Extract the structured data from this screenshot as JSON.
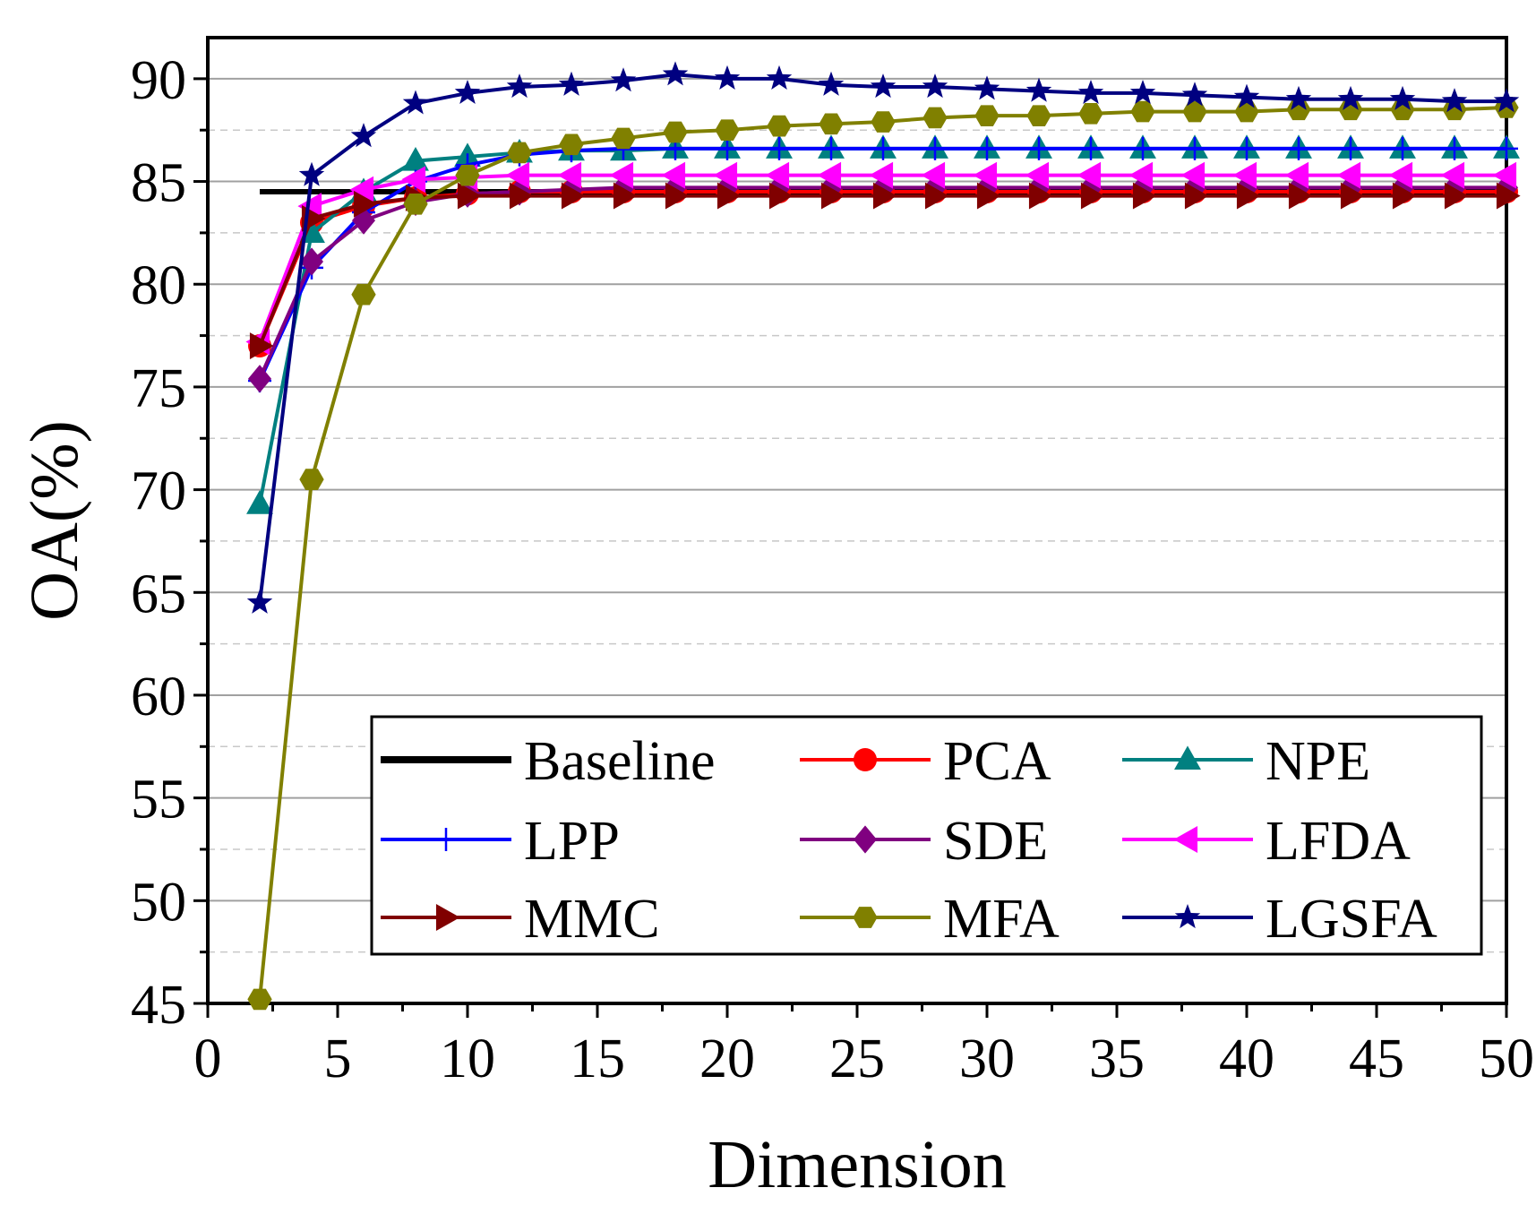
{
  "chart_data": {
    "type": "line",
    "title": "",
    "xlabel": "Dimension",
    "ylabel": "OA(%)",
    "xlim": [
      0,
      50
    ],
    "ylim": [
      45,
      92
    ],
    "xticks": [
      0,
      5,
      10,
      15,
      20,
      25,
      30,
      35,
      40,
      45,
      50
    ],
    "yticks": [
      45,
      50,
      55,
      60,
      65,
      70,
      75,
      80,
      85,
      90
    ],
    "grid": true,
    "legend_position": "bottom-right",
    "x": [
      2,
      4,
      6,
      8,
      10,
      12,
      14,
      16,
      18,
      20,
      22,
      24,
      26,
      28,
      30,
      32,
      34,
      36,
      38,
      40,
      42,
      44,
      46,
      48,
      50
    ],
    "series": [
      {
        "name": "Baseline",
        "color": "#000000",
        "marker": "none",
        "values": [
          84.5,
          84.5,
          84.5,
          84.5,
          84.5,
          84.5,
          84.5,
          84.5,
          84.5,
          84.5,
          84.5,
          84.5,
          84.5,
          84.5,
          84.5,
          84.5,
          84.5,
          84.5,
          84.5,
          84.5,
          84.5,
          84.5,
          84.5,
          84.5,
          84.5
        ]
      },
      {
        "name": "PCA",
        "color": "#ff0000",
        "marker": "circle",
        "values": [
          77.0,
          83.0,
          83.8,
          84.2,
          84.4,
          84.5,
          84.5,
          84.5,
          84.5,
          84.5,
          84.5,
          84.5,
          84.5,
          84.5,
          84.5,
          84.5,
          84.5,
          84.5,
          84.5,
          84.5,
          84.5,
          84.5,
          84.5,
          84.5,
          84.5
        ]
      },
      {
        "name": "NPE",
        "color": "#008080",
        "marker": "triangle-up",
        "values": [
          69.3,
          82.5,
          84.5,
          86.0,
          86.2,
          86.4,
          86.5,
          86.5,
          86.6,
          86.6,
          86.6,
          86.6,
          86.6,
          86.6,
          86.6,
          86.6,
          86.6,
          86.6,
          86.6,
          86.6,
          86.6,
          86.6,
          86.6,
          86.6,
          86.6
        ]
      },
      {
        "name": "LPP",
        "color": "#0000ff",
        "marker": "plus",
        "values": [
          75.3,
          80.8,
          83.5,
          85.0,
          85.8,
          86.3,
          86.5,
          86.6,
          86.6,
          86.6,
          86.6,
          86.6,
          86.6,
          86.6,
          86.6,
          86.6,
          86.6,
          86.6,
          86.6,
          86.6,
          86.6,
          86.6,
          86.6,
          86.6,
          86.6
        ]
      },
      {
        "name": "SDE",
        "color": "#800080",
        "marker": "diamond",
        "values": [
          75.4,
          81.1,
          83.1,
          84.0,
          84.4,
          84.5,
          84.6,
          84.7,
          84.7,
          84.7,
          84.7,
          84.7,
          84.7,
          84.7,
          84.7,
          84.7,
          84.7,
          84.7,
          84.7,
          84.7,
          84.7,
          84.7,
          84.7,
          84.7,
          84.7
        ]
      },
      {
        "name": "LFDA",
        "color": "#ff00ff",
        "marker": "triangle-left",
        "values": [
          77.2,
          83.8,
          84.6,
          85.1,
          85.2,
          85.3,
          85.3,
          85.3,
          85.3,
          85.3,
          85.3,
          85.3,
          85.3,
          85.3,
          85.3,
          85.3,
          85.3,
          85.3,
          85.3,
          85.3,
          85.3,
          85.3,
          85.3,
          85.3,
          85.3
        ]
      },
      {
        "name": "MMC",
        "color": "#800000",
        "marker": "triangle-right",
        "values": [
          77.0,
          83.2,
          83.9,
          84.2,
          84.3,
          84.3,
          84.3,
          84.3,
          84.3,
          84.3,
          84.3,
          84.3,
          84.3,
          84.3,
          84.3,
          84.3,
          84.3,
          84.3,
          84.3,
          84.3,
          84.3,
          84.3,
          84.3,
          84.3,
          84.3
        ]
      },
      {
        "name": "MFA",
        "color": "#808000",
        "marker": "hexagon",
        "values": [
          45.2,
          70.5,
          79.5,
          83.9,
          85.3,
          86.4,
          86.8,
          87.1,
          87.4,
          87.5,
          87.7,
          87.8,
          87.9,
          88.1,
          88.2,
          88.2,
          88.3,
          88.4,
          88.4,
          88.4,
          88.5,
          88.5,
          88.5,
          88.5,
          88.6
        ]
      },
      {
        "name": "LGSFA",
        "color": "#000080",
        "marker": "star",
        "values": [
          64.5,
          85.3,
          87.2,
          88.8,
          89.3,
          89.6,
          89.7,
          89.9,
          90.2,
          90.0,
          90.0,
          89.7,
          89.6,
          89.6,
          89.5,
          89.4,
          89.3,
          89.3,
          89.2,
          89.1,
          89.0,
          89.0,
          89.0,
          88.9,
          88.9
        ]
      }
    ]
  }
}
